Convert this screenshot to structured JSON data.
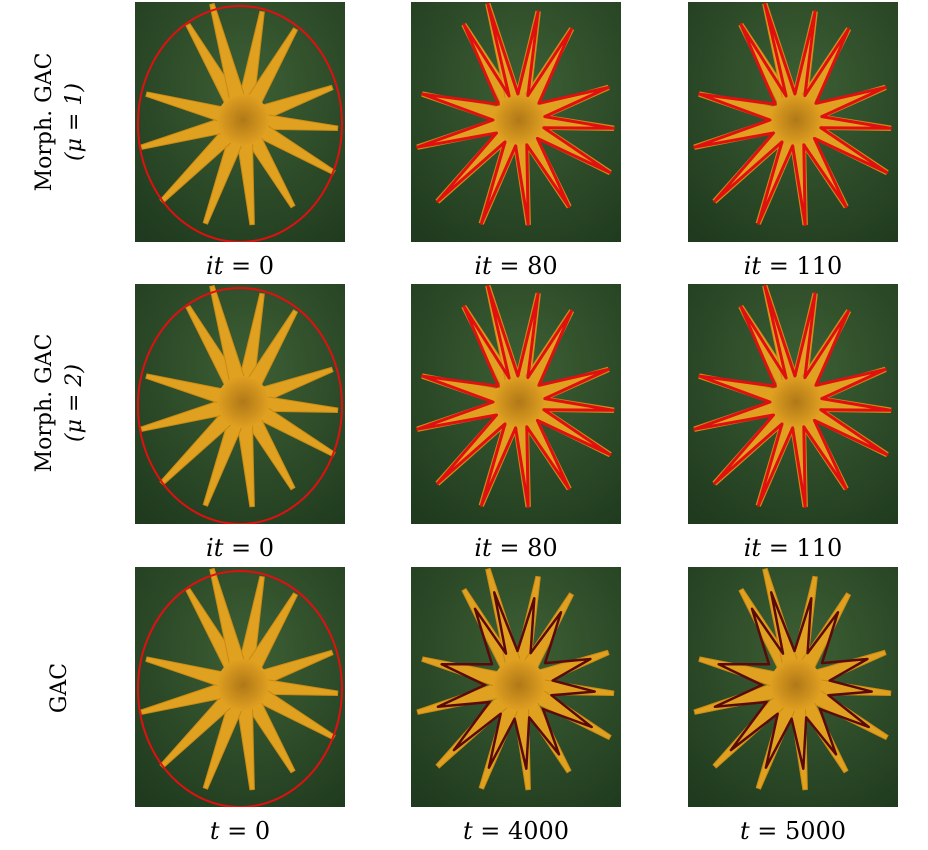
{
  "rows": [
    {
      "label_line1": "Morph. GAC",
      "label_line2": "(μ = 1)",
      "panels": [
        {
          "caption_var": "it",
          "caption_val": "= 0",
          "contour": "ellipse"
        },
        {
          "caption_var": "it",
          "caption_val": "= 80",
          "contour": "star-tight"
        },
        {
          "caption_var": "it",
          "caption_val": "= 110",
          "contour": "star-tight"
        }
      ]
    },
    {
      "label_line1": "Morph. GAC",
      "label_line2": "(μ = 2)",
      "panels": [
        {
          "caption_var": "it",
          "caption_val": "= 0",
          "contour": "ellipse"
        },
        {
          "caption_var": "it",
          "caption_val": "= 80",
          "contour": "star-tight"
        },
        {
          "caption_var": "it",
          "caption_val": "= 110",
          "contour": "star-tight"
        }
      ]
    },
    {
      "label_line1": "GAC",
      "label_line2": "",
      "panels": [
        {
          "caption_var": "t",
          "caption_val": "= 0",
          "contour": "ellipse"
        },
        {
          "caption_var": "t",
          "caption_val": "= 4000",
          "contour": "star-loose"
        },
        {
          "caption_var": "t",
          "caption_val": "= 5000",
          "contour": "star-loose"
        }
      ]
    }
  ],
  "colors": {
    "water_dark": "#1f3a1e",
    "water_light": "#3d5f34",
    "starfish": "#e0a020",
    "starfish_center": "#b07818",
    "contour": "#e01010",
    "contour_dark": "#5a0a0a"
  }
}
